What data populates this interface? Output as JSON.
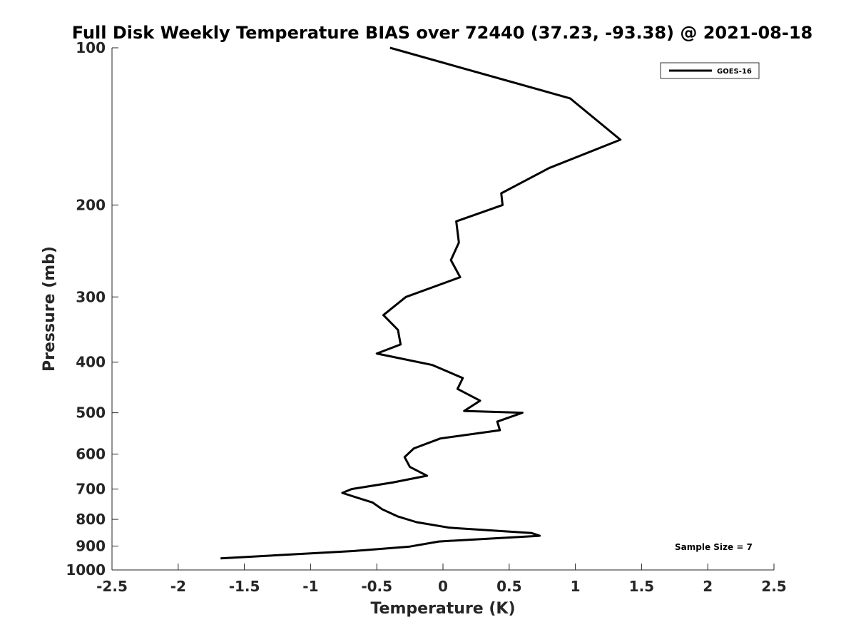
{
  "chart_data": {
    "type": "line",
    "title": "Full Disk Weekly Temperature BIAS over 72440 (37.23, -93.38) @ 2021-08-18",
    "xlabel": "Temperature (K)",
    "ylabel": "Pressure (mb)",
    "xlim": [
      -2.5,
      2.5
    ],
    "ylim": [
      100,
      1000
    ],
    "y_scale": "log",
    "y_reversed": true,
    "x_ticks": [
      -2.5,
      -2,
      -1.5,
      -1,
      -0.5,
      0,
      0.5,
      1,
      1.5,
      2,
      2.5
    ],
    "x_tick_labels": [
      "-2.5",
      "-2",
      "-1.5",
      "-1",
      "-0.5",
      "0",
      "0.5",
      "1",
      "1.5",
      "2",
      "2.5"
    ],
    "y_ticks": [
      100,
      200,
      300,
      400,
      500,
      600,
      700,
      800,
      900,
      1000
    ],
    "y_tick_labels": [
      "100",
      "200",
      "300",
      "400",
      "500",
      "600",
      "700",
      "800",
      "900",
      "1000"
    ],
    "grid": false,
    "legend_position": "top-right",
    "line_color": "#000000",
    "series": [
      {
        "name": "GOES-16",
        "x": [
          -0.4,
          0.96,
          1.34,
          0.8,
          0.44,
          0.45,
          0.1,
          0.12,
          0.06,
          0.13,
          -0.28,
          -0.45,
          -0.34,
          -0.32,
          -0.5,
          -0.08,
          0.15,
          0.11,
          0.28,
          0.16,
          0.6,
          0.41,
          0.43,
          -0.02,
          -0.22,
          -0.29,
          -0.25,
          -0.12,
          -0.38,
          -0.69,
          -0.76,
          -0.53,
          -0.46,
          -0.34,
          -0.2,
          0.05,
          0.67,
          0.73,
          -0.03,
          -0.25,
          -0.68,
          -1.68
        ],
        "y": [
          100,
          125,
          150,
          170,
          190,
          200,
          215,
          236,
          255,
          275,
          300,
          325,
          347,
          370,
          385,
          405,
          429,
          450,
          474,
          496,
          500,
          520,
          540,
          560,
          585,
          608,
          635,
          660,
          680,
          700,
          712,
          743,
          765,
          790,
          810,
          830,
          850,
          860,
          882,
          902,
          920,
          950
        ]
      }
    ],
    "annotation": "Sample Size = 7"
  }
}
